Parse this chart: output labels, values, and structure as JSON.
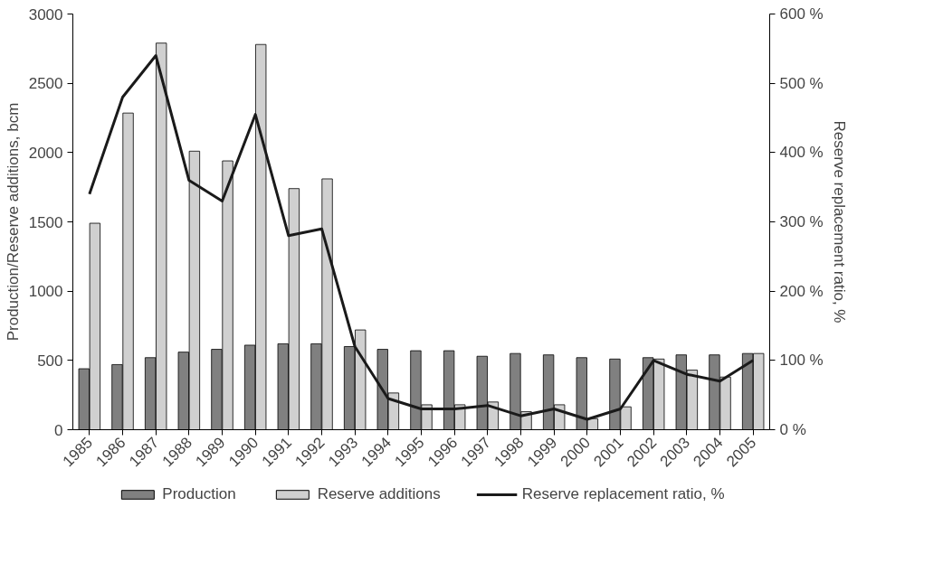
{
  "chart_data": {
    "type": "bar",
    "categories": [
      "1985",
      "1986",
      "1987",
      "1988",
      "1989",
      "1990",
      "1991",
      "1992",
      "1993",
      "1994",
      "1995",
      "1996",
      "1997",
      "1998",
      "1999",
      "2000",
      "2001",
      "2002",
      "2003",
      "2004",
      "2005"
    ],
    "ylabel": "Production/Reserve additions, bcm",
    "y2label": "Reserve replacement ratio, %",
    "ylim": [
      0,
      3000
    ],
    "yticks": [
      0,
      500,
      1000,
      1500,
      2000,
      2500,
      3000
    ],
    "y2lim": [
      0,
      600
    ],
    "y2ticks": [
      {
        "value": 0,
        "label": "0 %"
      },
      {
        "value": 100,
        "label": "100 %"
      },
      {
        "value": 200,
        "label": "200 %"
      },
      {
        "value": 300,
        "label": "300 %"
      },
      {
        "value": 400,
        "label": "400 %"
      },
      {
        "value": 500,
        "label": "500 %"
      },
      {
        "value": 600,
        "label": "600 %"
      }
    ],
    "grid": false,
    "legend": "bottom",
    "series": [
      {
        "name": "Production",
        "color": "#808080",
        "values": [
          440,
          470,
          520,
          560,
          580,
          610,
          620,
          620,
          600,
          580,
          570,
          570,
          530,
          550,
          540,
          520,
          510,
          520,
          540,
          540,
          550
        ]
      },
      {
        "name": "Reserve additions",
        "color": "#d0d0d0",
        "values": [
          1490,
          2285,
          2790,
          2010,
          1940,
          2780,
          1740,
          1810,
          720,
          265,
          180,
          180,
          200,
          130,
          180,
          80,
          165,
          510,
          430,
          380,
          550
        ]
      },
      {
        "name": "Reserve replacement ratio, %",
        "type": "line",
        "axis": "y2",
        "color": "#1a1a1a",
        "values": [
          340,
          480,
          540,
          360,
          330,
          455,
          280,
          290,
          120,
          45,
          30,
          30,
          35,
          20,
          30,
          15,
          30,
          100,
          80,
          70,
          100
        ]
      }
    ]
  }
}
